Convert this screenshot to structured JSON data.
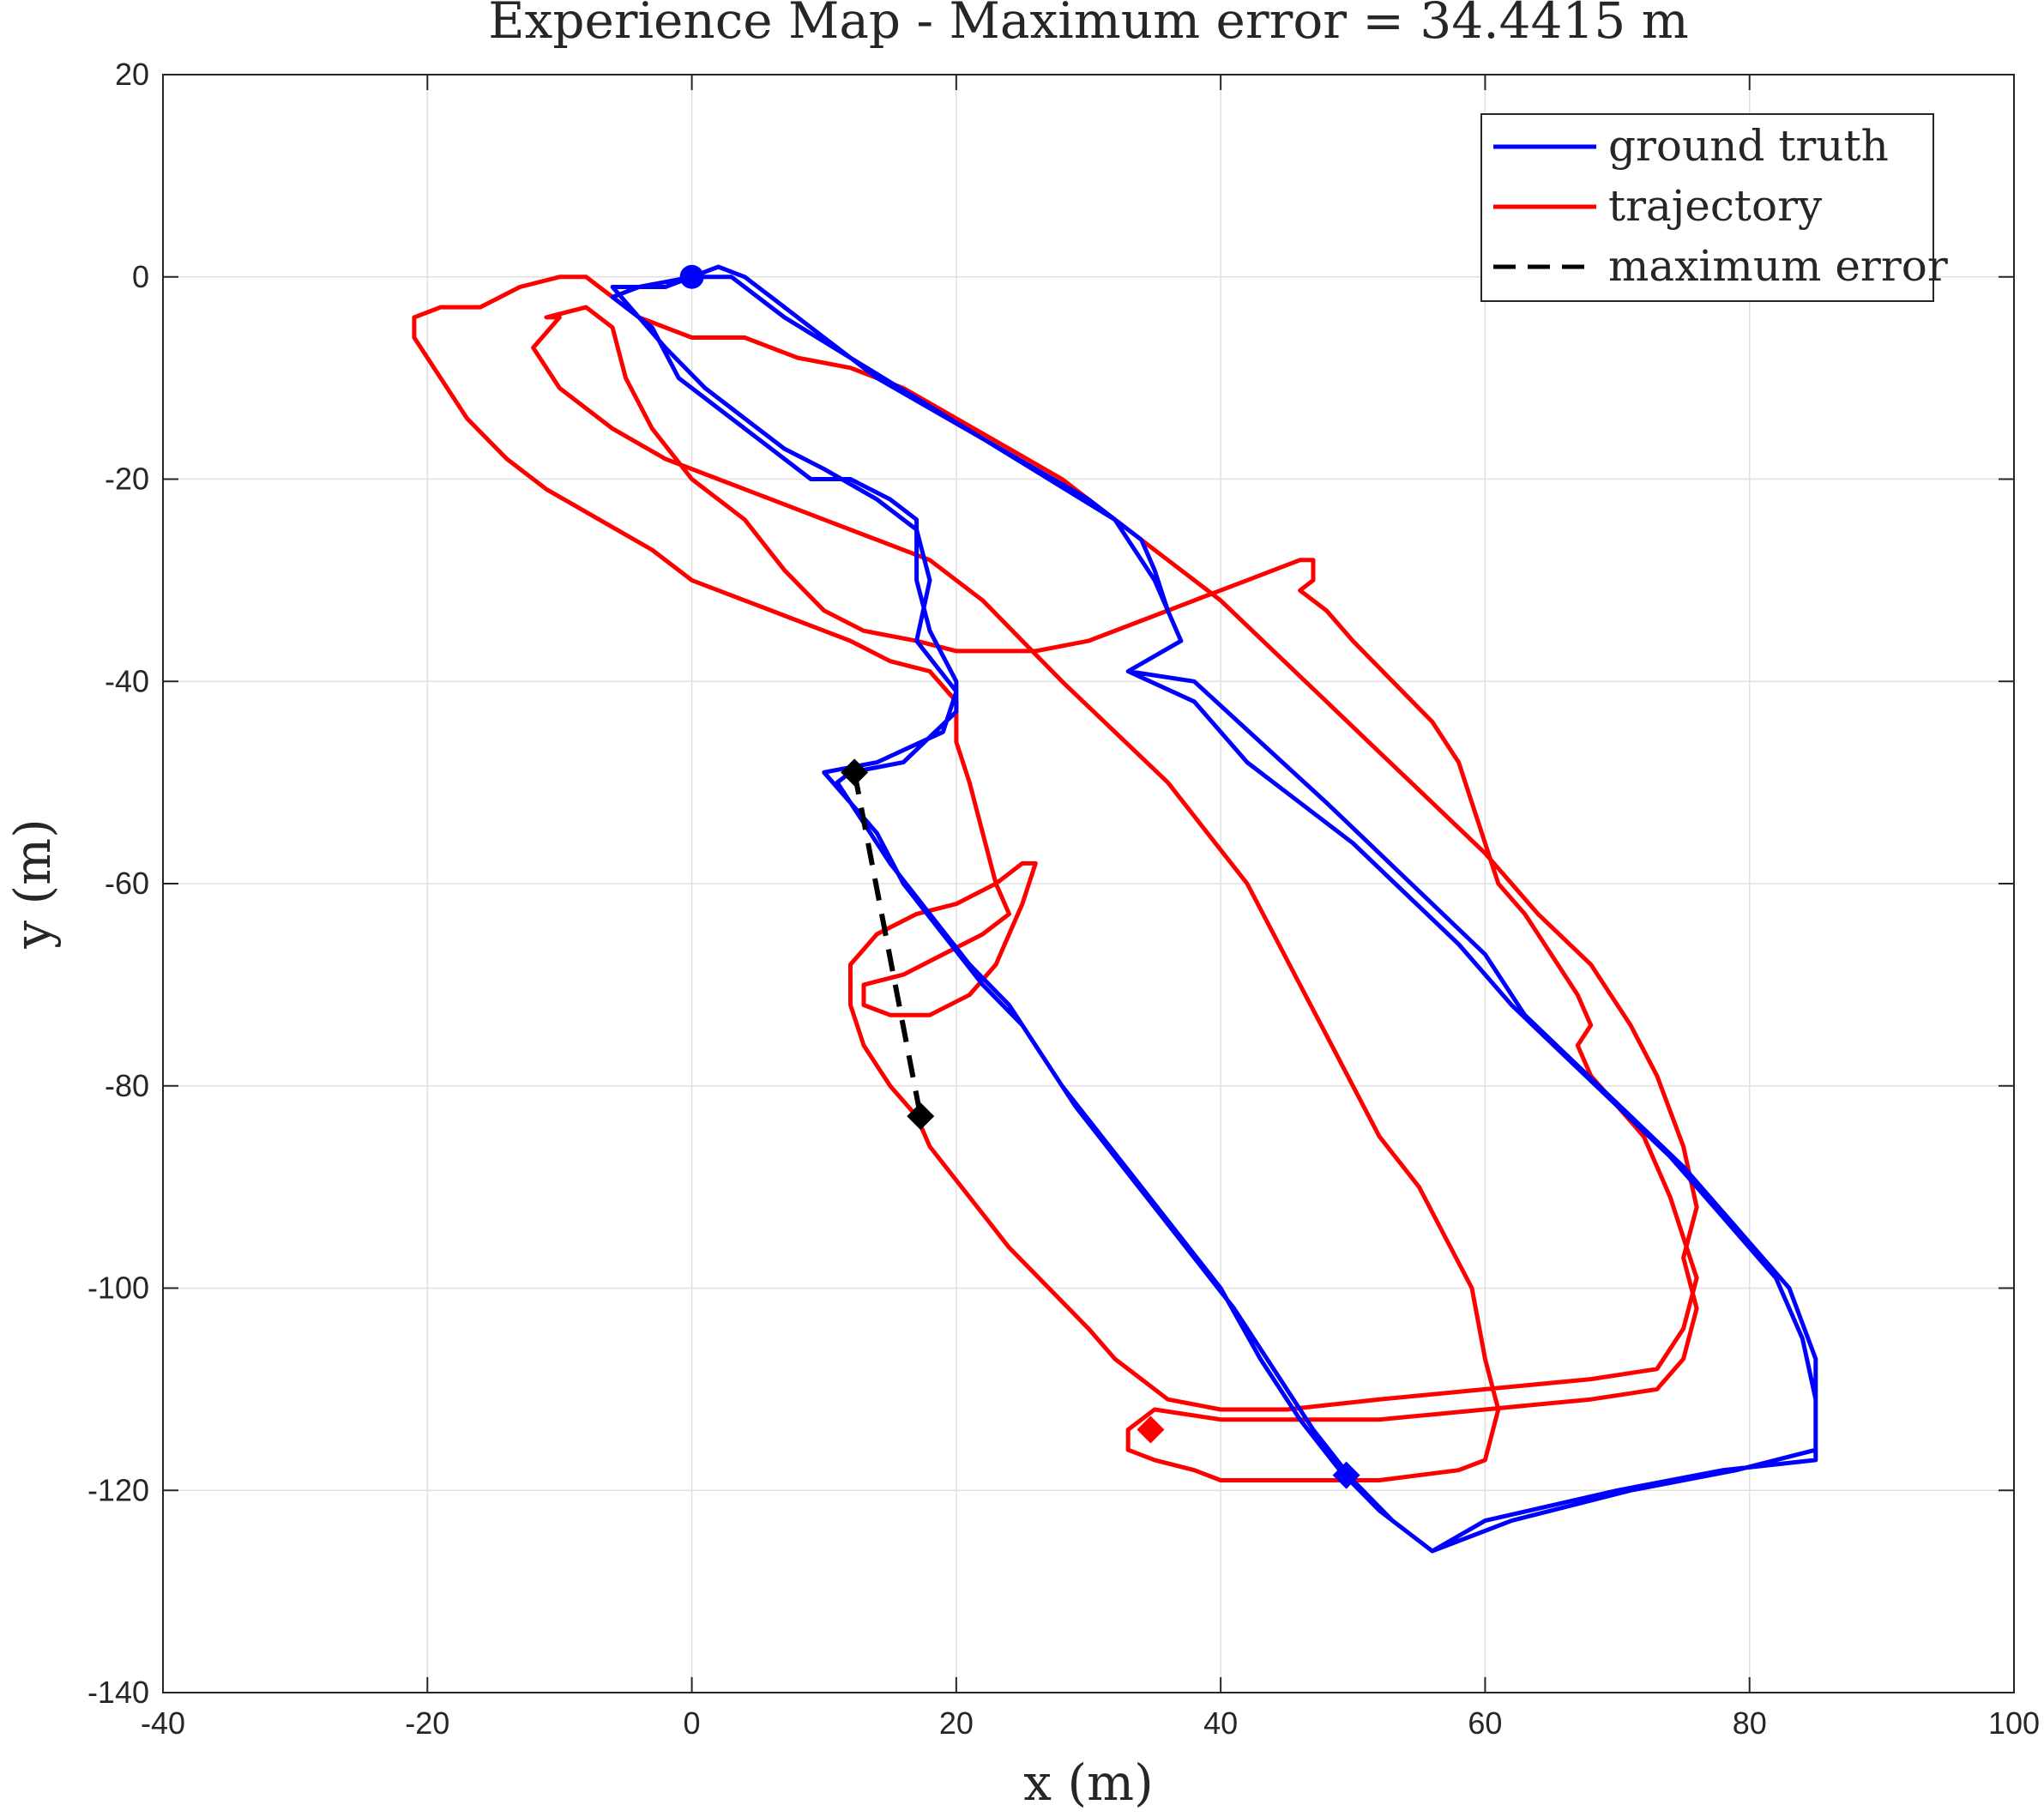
{
  "chart_data": {
    "type": "line",
    "title": "Experience Map - Maximum error = 34.4415 m",
    "xlabel": "x (m)",
    "ylabel": "y (m)",
    "xlim": [
      -40,
      100
    ],
    "ylim": [
      -140,
      20
    ],
    "xticks": [
      -40,
      -20,
      0,
      20,
      40,
      60,
      80,
      100
    ],
    "yticks": [
      20,
      0,
      -20,
      -40,
      -60,
      -80,
      -100,
      -120,
      -140
    ],
    "xtick_labels": [
      "-40",
      "-20",
      "0",
      "20",
      "40",
      "60",
      "80",
      "100"
    ],
    "ytick_labels": [
      "20",
      "0",
      "-20",
      "-40",
      "-60",
      "-80",
      "-100",
      "-120",
      "-140"
    ],
    "grid": true,
    "legend_position": "top-right",
    "series": [
      {
        "name": "ground truth",
        "color": "#0000ff",
        "style": "solid",
        "points": [
          [
            0,
            0
          ],
          [
            2,
            1
          ],
          [
            4,
            0
          ],
          [
            6,
            -2
          ],
          [
            10,
            -6
          ],
          [
            14,
            -10
          ],
          [
            18,
            -13
          ],
          [
            22,
            -16
          ],
          [
            26,
            -19
          ],
          [
            30,
            -22
          ],
          [
            34,
            -26
          ],
          [
            35,
            -29
          ],
          [
            36,
            -33
          ],
          [
            37,
            -36
          ],
          [
            33,
            -39
          ],
          [
            38,
            -42
          ],
          [
            42,
            -48
          ],
          [
            46,
            -52
          ],
          [
            50,
            -56
          ],
          [
            54,
            -61
          ],
          [
            58,
            -66
          ],
          [
            62,
            -72
          ],
          [
            66,
            -77
          ],
          [
            70,
            -82
          ],
          [
            74,
            -87
          ],
          [
            78,
            -93
          ],
          [
            82,
            -99
          ],
          [
            84,
            -105
          ],
          [
            85,
            -111
          ],
          [
            85,
            -117
          ],
          [
            78,
            -118
          ],
          [
            70,
            -120
          ],
          [
            60,
            -123
          ],
          [
            56,
            -126
          ],
          [
            52,
            -122
          ],
          [
            49,
            -118
          ],
          [
            46,
            -113
          ],
          [
            43,
            -107
          ],
          [
            40,
            -100
          ],
          [
            37,
            -95
          ],
          [
            34,
            -90
          ],
          [
            31,
            -85
          ],
          [
            28,
            -80
          ],
          [
            26,
            -76
          ],
          [
            24,
            -72
          ],
          [
            21,
            -68
          ],
          [
            18,
            -63
          ],
          [
            15,
            -58
          ],
          [
            13,
            -54
          ],
          [
            11,
            -50
          ],
          [
            12,
            -49
          ],
          [
            16,
            -48
          ],
          [
            20,
            -43
          ],
          [
            20,
            -40
          ],
          [
            18,
            -35
          ],
          [
            17,
            -30
          ],
          [
            17,
            -24
          ],
          [
            15,
            -22
          ],
          [
            12,
            -20
          ],
          [
            9,
            -20
          ],
          [
            6,
            -17
          ],
          [
            3,
            -14
          ],
          [
            -1,
            -10
          ],
          [
            -3,
            -5
          ],
          [
            -6,
            -2
          ],
          [
            -4,
            -1
          ],
          [
            0,
            0
          ],
          [
            3,
            0
          ],
          [
            7,
            -4
          ],
          [
            12,
            -8
          ],
          [
            17,
            -12
          ],
          [
            22,
            -16
          ],
          [
            27,
            -20
          ],
          [
            32,
            -24
          ],
          [
            35,
            -30
          ],
          [
            37,
            -36
          ],
          [
            33,
            -39
          ],
          [
            38,
            -40
          ],
          [
            43,
            -46
          ],
          [
            48,
            -52
          ],
          [
            52,
            -57
          ],
          [
            56,
            -62
          ],
          [
            60,
            -67
          ],
          [
            63,
            -73
          ],
          [
            67,
            -78
          ],
          [
            71,
            -83
          ],
          [
            75,
            -88
          ],
          [
            79,
            -94
          ],
          [
            83,
            -100
          ],
          [
            85,
            -107
          ],
          [
            85,
            -116
          ],
          [
            79,
            -118
          ],
          [
            71,
            -120
          ],
          [
            62,
            -123
          ],
          [
            56,
            -126
          ],
          [
            53,
            -123
          ],
          [
            50,
            -119
          ],
          [
            47,
            -114
          ],
          [
            44,
            -108
          ],
          [
            41,
            -102
          ],
          [
            38,
            -97
          ],
          [
            35,
            -92
          ],
          [
            32,
            -87
          ],
          [
            29,
            -82
          ],
          [
            27,
            -78
          ],
          [
            25,
            -74
          ],
          [
            22,
            -70
          ],
          [
            19,
            -65
          ],
          [
            16,
            -60
          ],
          [
            14,
            -55
          ],
          [
            10,
            -49
          ],
          [
            14,
            -48
          ],
          [
            19,
            -45
          ],
          [
            20,
            -41
          ],
          [
            17,
            -36
          ],
          [
            18,
            -30
          ],
          [
            17,
            -25
          ],
          [
            14,
            -22
          ],
          [
            10,
            -19
          ],
          [
            7,
            -17
          ],
          [
            4,
            -14
          ],
          [
            1,
            -11
          ],
          [
            -2,
            -7
          ],
          [
            -6,
            -1
          ],
          [
            -2,
            -1
          ],
          [
            0,
            0
          ]
        ]
      },
      {
        "name": "trajectory",
        "color": "#ff0000",
        "style": "solid",
        "points": [
          [
            -21,
            -4
          ],
          [
            -19,
            -3
          ],
          [
            -16,
            -3
          ],
          [
            -13,
            -1
          ],
          [
            -10,
            0
          ],
          [
            -8,
            0
          ],
          [
            -6,
            -2
          ],
          [
            -4,
            -4
          ],
          [
            0,
            -6
          ],
          [
            4,
            -6
          ],
          [
            8,
            -8
          ],
          [
            12,
            -9
          ],
          [
            16,
            -11
          ],
          [
            20,
            -14
          ],
          [
            24,
            -17
          ],
          [
            28,
            -20
          ],
          [
            32,
            -24
          ],
          [
            36,
            -28
          ],
          [
            40,
            -32
          ],
          [
            44,
            -37
          ],
          [
            48,
            -42
          ],
          [
            52,
            -47
          ],
          [
            56,
            -52
          ],
          [
            60,
            -57
          ],
          [
            64,
            -63
          ],
          [
            68,
            -68
          ],
          [
            71,
            -74
          ],
          [
            73,
            -79
          ],
          [
            75,
            -86
          ],
          [
            76,
            -92
          ],
          [
            75,
            -97
          ],
          [
            76,
            -102
          ],
          [
            75,
            -107
          ],
          [
            73,
            -110
          ],
          [
            68,
            -111
          ],
          [
            60,
            -112
          ],
          [
            52,
            -113
          ],
          [
            45,
            -113
          ],
          [
            40,
            -113
          ],
          [
            35,
            -112
          ],
          [
            33,
            -114
          ],
          [
            33,
            -116
          ],
          [
            35,
            -117
          ],
          [
            38,
            -118
          ],
          [
            40,
            -119
          ],
          [
            45,
            -119
          ],
          [
            52,
            -119
          ],
          [
            58,
            -118
          ],
          [
            60,
            -117
          ],
          [
            61,
            -112
          ],
          [
            60,
            -107
          ],
          [
            59,
            -100
          ],
          [
            57,
            -95
          ],
          [
            55,
            -90
          ],
          [
            52,
            -85
          ],
          [
            50,
            -80
          ],
          [
            48,
            -75
          ],
          [
            46,
            -70
          ],
          [
            44,
            -65
          ],
          [
            42,
            -60
          ],
          [
            39,
            -55
          ],
          [
            36,
            -50
          ],
          [
            32,
            -45
          ],
          [
            28,
            -40
          ],
          [
            25,
            -36
          ],
          [
            22,
            -32
          ],
          [
            18,
            -28
          ],
          [
            14,
            -26
          ],
          [
            10,
            -24
          ],
          [
            6,
            -22
          ],
          [
            2,
            -20
          ],
          [
            -2,
            -18
          ],
          [
            -6,
            -15
          ],
          [
            -10,
            -11
          ],
          [
            -12,
            -7
          ],
          [
            -10,
            -4
          ],
          [
            -11,
            -4
          ],
          [
            -8,
            -3
          ],
          [
            -6,
            -5
          ],
          [
            -5,
            -10
          ],
          [
            -3,
            -15
          ],
          [
            0,
            -20
          ],
          [
            4,
            -24
          ],
          [
            7,
            -29
          ],
          [
            10,
            -33
          ],
          [
            13,
            -35
          ],
          [
            17,
            -36
          ],
          [
            20,
            -37
          ],
          [
            22,
            -37
          ],
          [
            26,
            -37
          ],
          [
            30,
            -36
          ],
          [
            34,
            -34
          ],
          [
            38,
            -32
          ],
          [
            42,
            -30
          ],
          [
            44,
            -29
          ],
          [
            46,
            -28
          ],
          [
            47,
            -28
          ],
          [
            47,
            -30
          ],
          [
            46,
            -31
          ],
          [
            48,
            -33
          ],
          [
            50,
            -36
          ],
          [
            53,
            -40
          ],
          [
            56,
            -44
          ],
          [
            58,
            -48
          ],
          [
            59,
            -52
          ],
          [
            60,
            -56
          ],
          [
            61,
            -60
          ],
          [
            63,
            -63
          ],
          [
            65,
            -67
          ],
          [
            67,
            -71
          ],
          [
            68,
            -74
          ],
          [
            67,
            -76
          ],
          [
            68,
            -79
          ],
          [
            70,
            -82
          ],
          [
            72,
            -85
          ],
          [
            73,
            -88
          ],
          [
            74,
            -91
          ],
          [
            75,
            -95
          ],
          [
            76,
            -99
          ],
          [
            75,
            -104
          ],
          [
            73,
            -108
          ],
          [
            68,
            -109
          ],
          [
            60,
            -110
          ],
          [
            52,
            -111
          ],
          [
            45,
            -112
          ],
          [
            40,
            -112
          ],
          [
            36,
            -111
          ],
          [
            34,
            -109
          ],
          [
            32,
            -107
          ],
          [
            30,
            -104
          ],
          [
            27,
            -100
          ],
          [
            24,
            -96
          ],
          [
            21,
            -91
          ],
          [
            18,
            -86
          ],
          [
            17,
            -83
          ],
          [
            15,
            -80
          ],
          [
            13,
            -76
          ],
          [
            12,
            -72
          ],
          [
            12,
            -68
          ],
          [
            14,
            -65
          ],
          [
            17,
            -63
          ],
          [
            20,
            -62
          ],
          [
            23,
            -60
          ],
          [
            25,
            -58
          ],
          [
            26,
            -58
          ],
          [
            25,
            -62
          ],
          [
            24,
            -65
          ],
          [
            23,
            -68
          ],
          [
            21,
            -71
          ],
          [
            18,
            -73
          ],
          [
            15,
            -73
          ],
          [
            13,
            -72
          ],
          [
            13,
            -70
          ],
          [
            16,
            -69
          ],
          [
            19,
            -67
          ],
          [
            22,
            -65
          ],
          [
            24,
            -63
          ],
          [
            23,
            -60
          ],
          [
            22,
            -55
          ],
          [
            21,
            -50
          ],
          [
            20,
            -46
          ],
          [
            20,
            -42
          ],
          [
            18,
            -39
          ],
          [
            15,
            -38
          ],
          [
            12,
            -36
          ],
          [
            8,
            -34
          ],
          [
            4,
            -32
          ],
          [
            0,
            -30
          ],
          [
            -3,
            -27
          ],
          [
            -7,
            -24
          ],
          [
            -11,
            -21
          ],
          [
            -14,
            -18
          ],
          [
            -17,
            -14
          ],
          [
            -19,
            -10
          ],
          [
            -21,
            -6
          ],
          [
            -21,
            -4
          ]
        ]
      },
      {
        "name": "maximum error",
        "color": "#000000",
        "style": "dashed",
        "points": [
          [
            12.3,
            -49
          ],
          [
            17.3,
            -83
          ]
        ]
      }
    ],
    "markers": [
      {
        "shape": "circle",
        "color": "#0000ff",
        "x": 0,
        "y": 0
      },
      {
        "shape": "diamond",
        "color": "#000000",
        "x": 12.3,
        "y": -49
      },
      {
        "shape": "diamond",
        "color": "#000000",
        "x": 17.3,
        "y": -83
      },
      {
        "shape": "diamond",
        "color": "#ff0000",
        "x": 34.7,
        "y": -114
      },
      {
        "shape": "diamond",
        "color": "#0000ff",
        "x": 49.5,
        "y": -118.5
      }
    ]
  }
}
